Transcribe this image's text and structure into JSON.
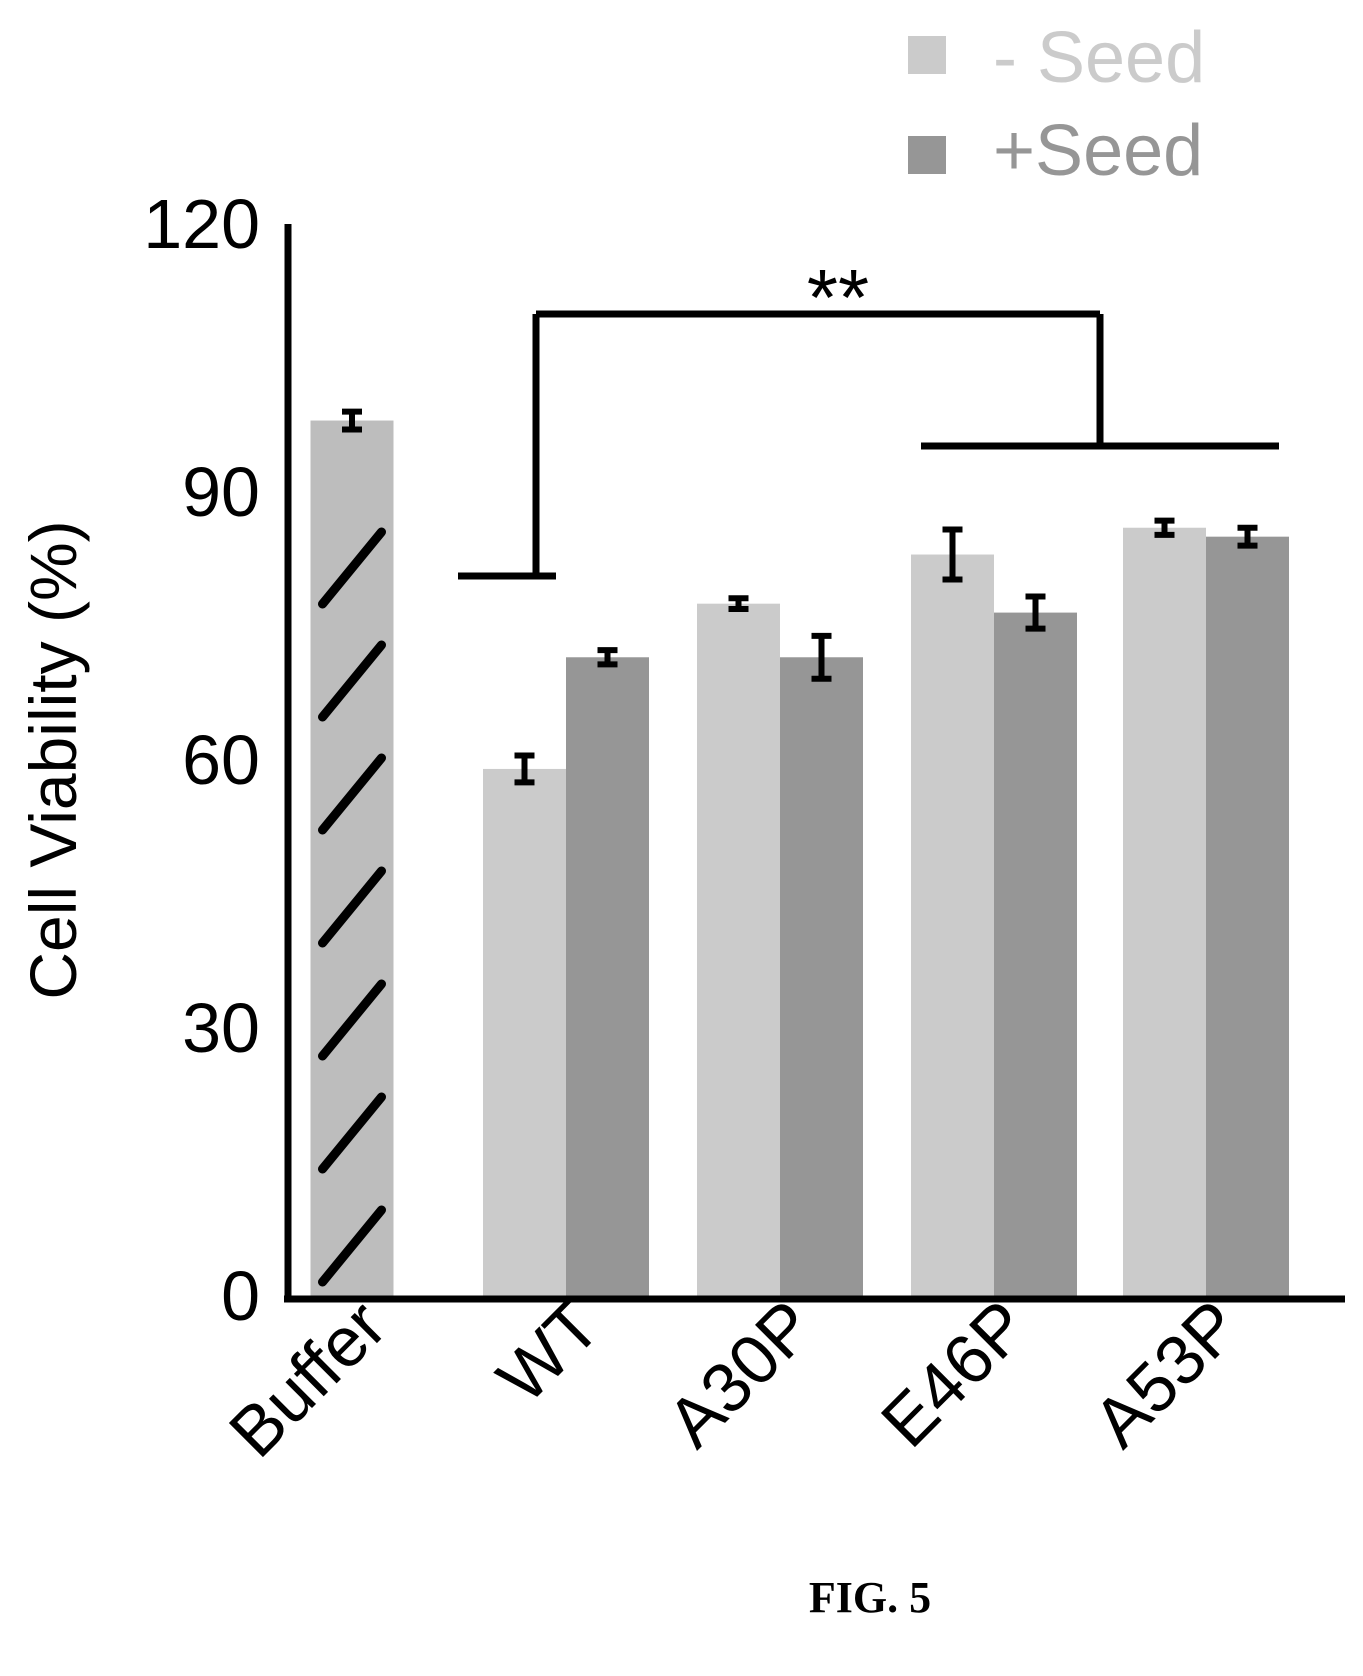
{
  "figure_label": "FIG. 5",
  "colors": {
    "minus_seed": "#cbcbcb",
    "plus_seed": "#969696",
    "buffer": "#bdbdbd",
    "axis": "#000000"
  },
  "chart_data": {
    "type": "bar",
    "ylabel": "Cell Viability (%)",
    "ylim": [
      0,
      120
    ],
    "yticks": [
      0,
      30,
      60,
      90,
      120
    ],
    "grid": false,
    "legend_position": "top-right",
    "categories": [
      "Buffer",
      "WT",
      "A30P",
      "E46P",
      "A53P"
    ],
    "buffer": {
      "value": 98,
      "error": 1
    },
    "series": [
      {
        "name": "- Seed",
        "values": [
          null,
          59,
          77.5,
          83,
          86
        ],
        "errors": [
          null,
          1.5,
          0.6,
          2.8,
          0.8
        ]
      },
      {
        "name": "+Seed",
        "values": [
          null,
          71.5,
          71.5,
          76.5,
          85
        ],
        "errors": [
          null,
          0.8,
          2.4,
          1.8,
          1.0
        ]
      }
    ],
    "annotations": [
      {
        "text": "**",
        "from": "WT",
        "to": [
          "E46P",
          "A53P"
        ]
      }
    ]
  }
}
